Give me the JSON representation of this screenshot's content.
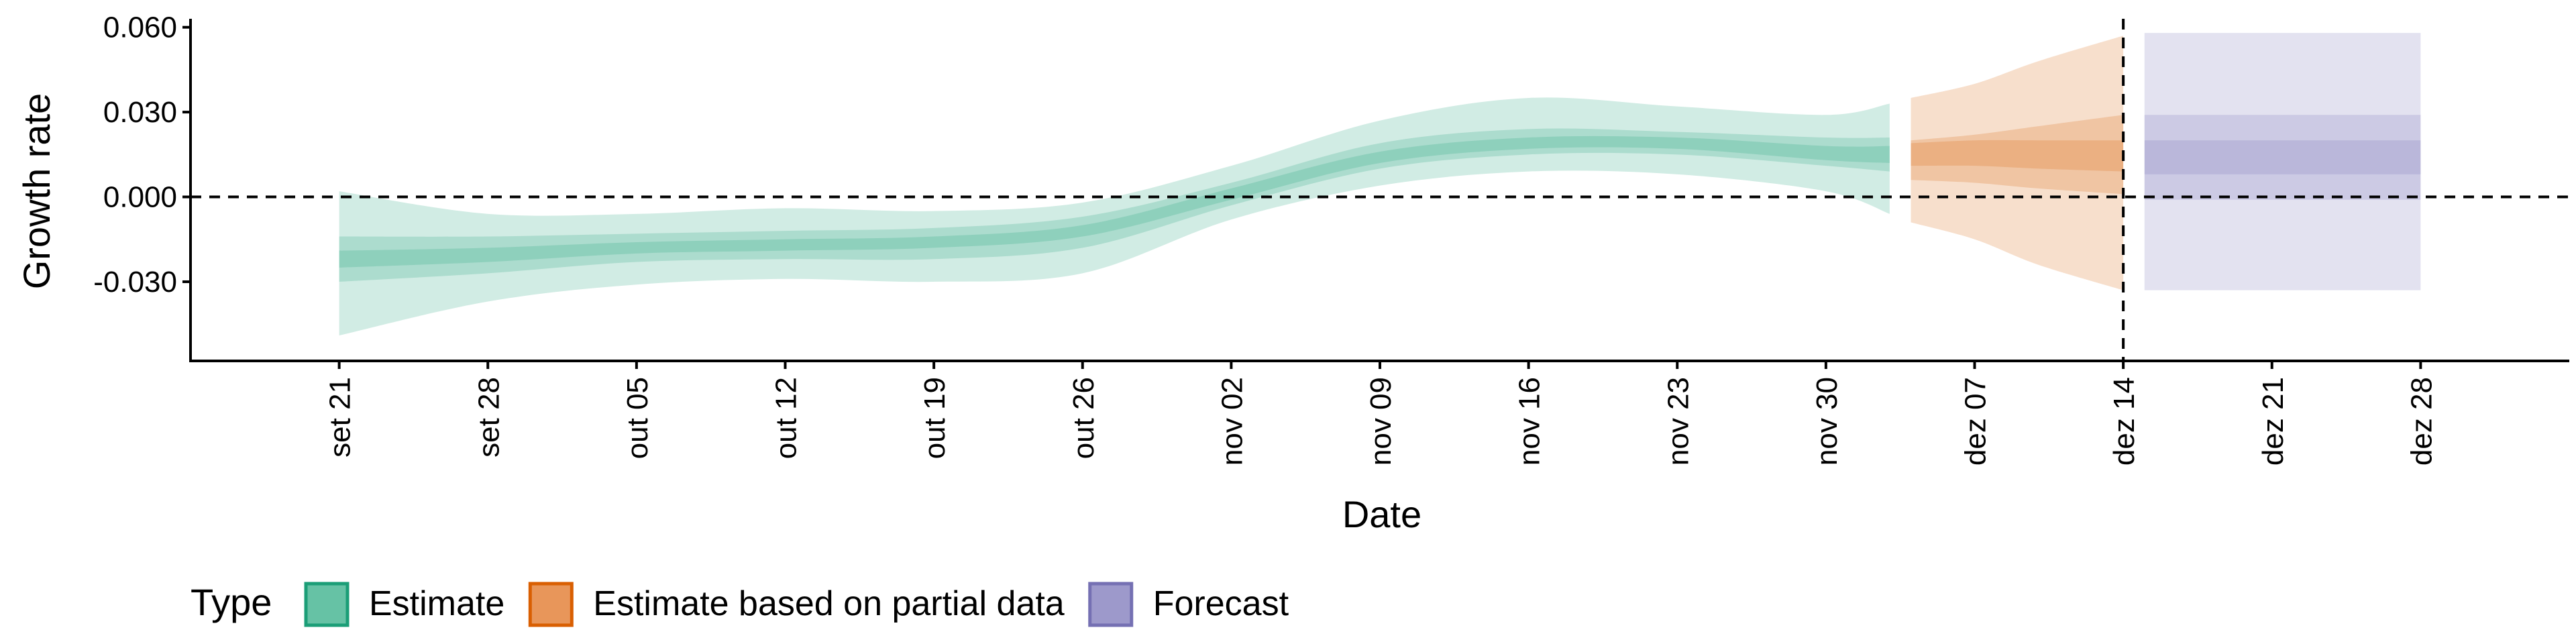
{
  "chart_data": {
    "type": "area",
    "xlabel": "Date",
    "ylabel": "Growth rate",
    "x_domain": [
      "2020-09-14",
      "2021-01-04"
    ],
    "ylim": [
      -0.058,
      0.063
    ],
    "y_ticks": [
      -0.03,
      0.0,
      0.03,
      0.06
    ],
    "y_tick_labels": [
      "-0.030",
      "0.000",
      "0.030",
      "0.060"
    ],
    "x_ticks": [
      "2020-09-21",
      "2020-09-28",
      "2020-10-05",
      "2020-10-12",
      "2020-10-19",
      "2020-10-26",
      "2020-11-02",
      "2020-11-09",
      "2020-11-16",
      "2020-11-23",
      "2020-11-30",
      "2020-12-07",
      "2020-12-14",
      "2020-12-21",
      "2020-12-28"
    ],
    "x_tick_labels": [
      "set 21",
      "set 28",
      "out 05",
      "out 12",
      "out 19",
      "out 26",
      "nov 02",
      "nov 09",
      "nov 16",
      "nov 23",
      "nov 30",
      "dez 07",
      "dez 14",
      "dez 21",
      "dez 28"
    ],
    "hline": 0.0,
    "vline": "2020-12-14",
    "grid": false,
    "legend": {
      "title": "Type",
      "position": "bottom-left",
      "items": [
        {
          "label": "Estimate",
          "fill": "#66c2a5",
          "border": "#1b9e77"
        },
        {
          "label": "Estimate based on partial data",
          "fill": "#e8965a",
          "border": "#d95f02"
        },
        {
          "label": "Forecast",
          "fill": "#9d99cb",
          "border": "#7570b3"
        }
      ]
    },
    "series": [
      {
        "name": "Estimate",
        "color": "#1b9e77",
        "x": [
          "2020-09-21",
          "2020-09-28",
          "2020-10-05",
          "2020-10-12",
          "2020-10-19",
          "2020-10-26",
          "2020-11-02",
          "2020-11-09",
          "2020-11-16",
          "2020-11-23",
          "2020-11-30",
          "2020-12-03"
        ],
        "median": [
          -0.022,
          -0.02,
          -0.018,
          -0.017,
          -0.016,
          -0.012,
          0.001,
          0.014,
          0.019,
          0.019,
          0.016,
          0.015
        ],
        "lower_90": [
          -0.049,
          -0.037,
          -0.031,
          -0.029,
          -0.03,
          -0.027,
          -0.008,
          0.004,
          0.009,
          0.008,
          0.002,
          -0.006
        ],
        "upper_90": [
          0.002,
          -0.006,
          -0.006,
          -0.004,
          -0.005,
          -0.002,
          0.011,
          0.027,
          0.035,
          0.032,
          0.029,
          0.033
        ],
        "lower_50": [
          -0.03,
          -0.027,
          -0.023,
          -0.022,
          -0.022,
          -0.018,
          -0.003,
          0.01,
          0.015,
          0.015,
          0.011,
          0.009
        ],
        "upper_50": [
          -0.014,
          -0.014,
          -0.013,
          -0.012,
          -0.011,
          -0.007,
          0.005,
          0.019,
          0.024,
          0.023,
          0.021,
          0.021
        ],
        "lower_20": [
          -0.025,
          -0.023,
          -0.02,
          -0.019,
          -0.018,
          -0.014,
          -0.001,
          0.012,
          0.017,
          0.017,
          0.013,
          0.012
        ],
        "upper_20": [
          -0.019,
          -0.018,
          -0.016,
          -0.015,
          -0.014,
          -0.01,
          0.003,
          0.016,
          0.021,
          0.021,
          0.018,
          0.018
        ]
      },
      {
        "name": "Estimate based on partial data",
        "color": "#d95f02",
        "x": [
          "2020-12-04",
          "2020-12-07",
          "2020-12-10",
          "2020-12-14"
        ],
        "median": [
          0.015,
          0.016,
          0.017,
          0.018
        ],
        "lower_90": [
          -0.009,
          -0.015,
          -0.024,
          -0.033
        ],
        "upper_90": [
          0.035,
          0.04,
          0.048,
          0.057
        ],
        "lower_50": [
          0.006,
          0.005,
          0.003,
          0.001
        ],
        "upper_50": [
          0.02,
          0.022,
          0.025,
          0.029
        ],
        "lower_20": [
          0.011,
          0.011,
          0.01,
          0.009
        ],
        "upper_20": [
          0.019,
          0.02,
          0.02,
          0.02
        ]
      },
      {
        "name": "Forecast",
        "color": "#7570b3",
        "x": [
          "2020-12-15",
          "2020-12-28"
        ],
        "median": [
          0.014,
          0.014
        ],
        "lower_90": [
          -0.033,
          -0.033
        ],
        "upper_90": [
          0.058,
          0.058
        ],
        "lower_50": [
          -0.001,
          -0.001
        ],
        "upper_50": [
          0.029,
          0.029
        ],
        "lower_20": [
          0.008,
          0.008
        ],
        "upper_20": [
          0.02,
          0.02
        ]
      }
    ]
  }
}
